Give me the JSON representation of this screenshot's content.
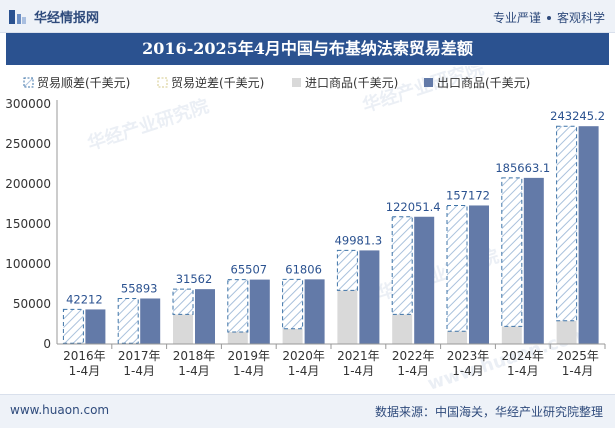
{
  "header": {
    "brand_name": "华经情报网",
    "tagline_left": "专业严谨",
    "tagline_right": "客观科学"
  },
  "title": "2016-2025年4月中国与布基纳法索贸易差额",
  "footer": {
    "website": "www.huaon.com",
    "source": "数据来源：中国海关，华经产业研究院整理"
  },
  "watermarks": [
    "华经产业研究院",
    "www.huaon.com"
  ],
  "colors": {
    "surplus": "#3f74a8",
    "deficit": "#d4c98a",
    "imports": "#d9d9d9",
    "exports": "#637aa8",
    "title_bg": "#2b5290",
    "label": "#2b5290"
  },
  "chart_data": {
    "type": "bar",
    "categories": [
      "2016年\n1-4月",
      "2017年\n1-4月",
      "2018年\n1-4月",
      "2019年\n1-4月",
      "2020年\n1-4月",
      "2021年\n1-4月",
      "2022年\n1-4月",
      "2023年\n1-4月",
      "2024年\n1-4月",
      "2025年\n1-4月"
    ],
    "series": [
      {
        "name": "贸易顺差(千美元)",
        "values": [
          42212,
          55893,
          31562,
          65507,
          61806,
          49981.3,
          122051.4,
          157172,
          185663.1,
          243245.2
        ]
      },
      {
        "name": "贸易逆差(千美元)",
        "values": [
          0,
          0,
          0,
          0,
          0,
          0,
          0,
          0,
          0,
          0
        ]
      },
      {
        "name": "进口商品(千美元)",
        "values": [
          1000,
          1000,
          37000,
          15000,
          19000,
          67000,
          37000,
          16000,
          22000,
          29000
        ]
      },
      {
        "name": "出口商品(千美元)",
        "values": [
          43212,
          56893,
          68562,
          80507,
          80806,
          116981.3,
          159051.4,
          173172,
          207663.1,
          272245.2
        ]
      }
    ],
    "data_labels": [
      "42212",
      "55893",
      "31562",
      "65507",
      "61806",
      "49981.3",
      "122051.4",
      "157172",
      "185663.1",
      "243245.2"
    ],
    "yticks": [
      "0",
      "50000",
      "100000",
      "150000",
      "200000",
      "250000",
      "300000"
    ],
    "ylim": [
      0,
      300000
    ],
    "legend_position": "top",
    "grid": false
  }
}
